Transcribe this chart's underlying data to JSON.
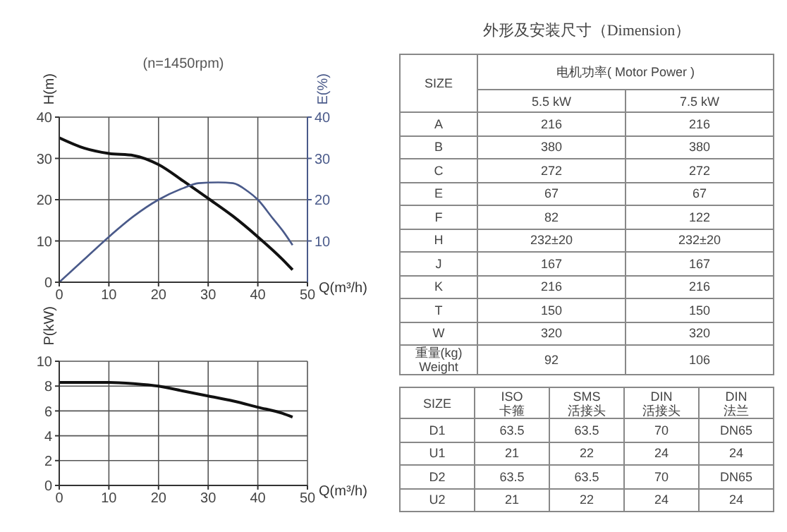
{
  "chart_data": [
    {
      "type": "line",
      "title": "(n=1450rpm)",
      "xlabel": "Q(m³/h)",
      "ylabel": "H(m)",
      "y2label": "E(%)",
      "xlim": [
        0,
        50
      ],
      "xticks": [
        0,
        10,
        20,
        30,
        40,
        50
      ],
      "ylim": [
        0,
        40
      ],
      "yticks": [
        0,
        10,
        20,
        30,
        40
      ],
      "y2lim": [
        0,
        40
      ],
      "y2ticks": [
        10,
        20,
        30,
        40
      ],
      "grid": true,
      "marker": "none",
      "series": [
        {
          "color": "#111111",
          "x": [
            0,
            5,
            10,
            15,
            20,
            25,
            30,
            35,
            40,
            45,
            47
          ],
          "values": [
            35,
            32.5,
            31.2,
            30.7,
            28.5,
            24.5,
            20.3,
            16,
            11,
            5.5,
            3
          ]
        },
        {
          "color": "#4a5a8a",
          "axis": "y2",
          "x": [
            0,
            5,
            10,
            15,
            20,
            25,
            28,
            32,
            35,
            38,
            40,
            43,
            45,
            47
          ],
          "values": [
            0,
            5.5,
            11,
            16,
            20,
            22.8,
            24,
            24.2,
            24,
            22,
            20,
            15.5,
            12.5,
            9
          ]
        }
      ]
    },
    {
      "type": "line",
      "xlabel": "Q(m³/h)",
      "ylabel": "P(kW)",
      "xlim": [
        0,
        50
      ],
      "xticks": [
        0,
        10,
        20,
        30,
        40,
        50
      ],
      "ylim": [
        0,
        10
      ],
      "yticks": [
        0,
        2,
        4,
        6,
        8,
        10
      ],
      "grid": true,
      "marker": "none",
      "series": [
        {
          "color": "#111111",
          "x": [
            0,
            5,
            10,
            15,
            20,
            25,
            30,
            35,
            40,
            45,
            47
          ],
          "values": [
            8.3,
            8.3,
            8.3,
            8.2,
            8,
            7.6,
            7.2,
            6.8,
            6.3,
            5.8,
            5.5
          ]
        }
      ]
    },
    {
      "type": "other",
      "title": "外形及安装尺寸（Dimension）",
      "annotations": [
        "SIZE",
        "电机功率( Motor Power )",
        "5.5 kW",
        "7.5 kW",
        "A",
        "216",
        "216",
        "B",
        "380",
        "380",
        "C",
        "272",
        "272",
        "E",
        "67",
        "67",
        "F",
        "82",
        "122",
        "H",
        "232±20",
        "232±20",
        "J",
        "167",
        "167",
        "K",
        "216",
        "216",
        "T",
        "150",
        "150",
        "W",
        "320",
        "320",
        "重量(kg)\nWeight",
        "92",
        "106"
      ]
    },
    {
      "type": "other",
      "annotations": [
        "SIZE",
        "ISO\n卡箍",
        "SMS\n活接头",
        "DIN\n活接头",
        "DIN\n法兰",
        "D1",
        "63.5",
        "63.5",
        "70",
        "DN65",
        "U1",
        "21",
        "22",
        "24",
        "24",
        "D2",
        "63.5",
        "63.5",
        "70",
        "DN65",
        "U2",
        "21",
        "22",
        "24",
        "24"
      ]
    }
  ]
}
